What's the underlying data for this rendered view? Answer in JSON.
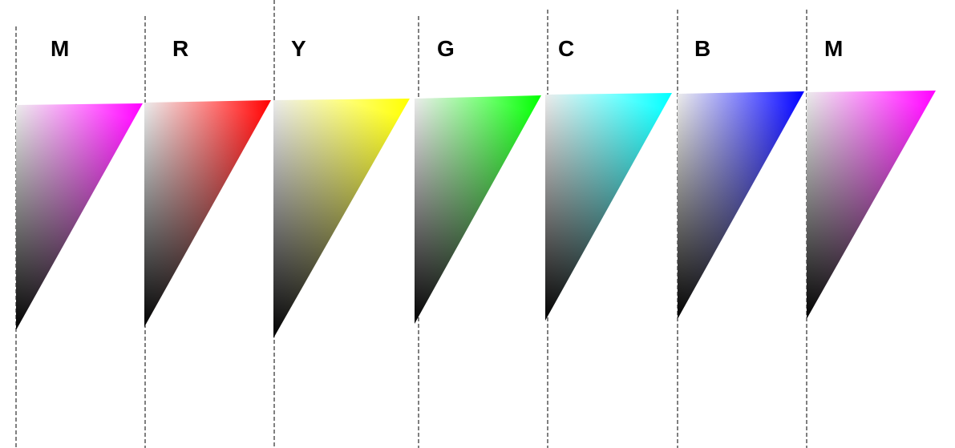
{
  "panels": [
    {
      "label": "M",
      "color": "#ff00ff"
    },
    {
      "label": "R",
      "color": "#ff0000"
    },
    {
      "label": "Y",
      "color": "#ffff00"
    },
    {
      "label": "G",
      "color": "#00ff00"
    },
    {
      "label": "C",
      "color": "#00ffff"
    },
    {
      "label": "B",
      "color": "#0000ff"
    },
    {
      "label": "M",
      "color": "#ff00ff"
    }
  ],
  "base_colors": {
    "white": "#ffffff",
    "black": "#000000"
  }
}
